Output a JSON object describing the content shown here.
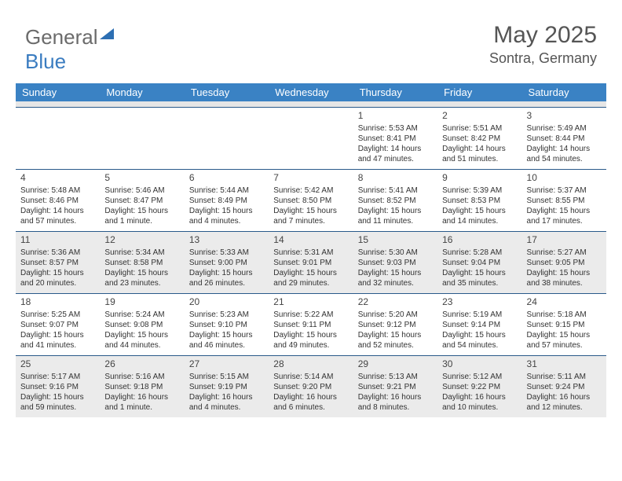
{
  "logo": {
    "text1": "General",
    "text2": "Blue"
  },
  "header": {
    "title": "May 2025",
    "location": "Sontra, Germany"
  },
  "colors": {
    "header_bg": "#3a82c4",
    "header_text": "#ffffff",
    "shade_bg": "#ebebeb",
    "rule": "#2a5a8a",
    "logo_gray": "#6b6b6b",
    "logo_blue": "#3a7cc0"
  },
  "dayheads": [
    "Sunday",
    "Monday",
    "Tuesday",
    "Wednesday",
    "Thursday",
    "Friday",
    "Saturday"
  ],
  "weeks": [
    [
      {
        "empty": true
      },
      {
        "empty": true
      },
      {
        "empty": true
      },
      {
        "empty": true
      },
      {
        "num": "1",
        "sunrise": "Sunrise: 5:53 AM",
        "sunset": "Sunset: 8:41 PM",
        "daylight": "Daylight: 14 hours and 47 minutes."
      },
      {
        "num": "2",
        "sunrise": "Sunrise: 5:51 AM",
        "sunset": "Sunset: 8:42 PM",
        "daylight": "Daylight: 14 hours and 51 minutes."
      },
      {
        "num": "3",
        "sunrise": "Sunrise: 5:49 AM",
        "sunset": "Sunset: 8:44 PM",
        "daylight": "Daylight: 14 hours and 54 minutes."
      }
    ],
    [
      {
        "num": "4",
        "sunrise": "Sunrise: 5:48 AM",
        "sunset": "Sunset: 8:46 PM",
        "daylight": "Daylight: 14 hours and 57 minutes."
      },
      {
        "num": "5",
        "sunrise": "Sunrise: 5:46 AM",
        "sunset": "Sunset: 8:47 PM",
        "daylight": "Daylight: 15 hours and 1 minute."
      },
      {
        "num": "6",
        "sunrise": "Sunrise: 5:44 AM",
        "sunset": "Sunset: 8:49 PM",
        "daylight": "Daylight: 15 hours and 4 minutes."
      },
      {
        "num": "7",
        "sunrise": "Sunrise: 5:42 AM",
        "sunset": "Sunset: 8:50 PM",
        "daylight": "Daylight: 15 hours and 7 minutes."
      },
      {
        "num": "8",
        "sunrise": "Sunrise: 5:41 AM",
        "sunset": "Sunset: 8:52 PM",
        "daylight": "Daylight: 15 hours and 11 minutes."
      },
      {
        "num": "9",
        "sunrise": "Sunrise: 5:39 AM",
        "sunset": "Sunset: 8:53 PM",
        "daylight": "Daylight: 15 hours and 14 minutes."
      },
      {
        "num": "10",
        "sunrise": "Sunrise: 5:37 AM",
        "sunset": "Sunset: 8:55 PM",
        "daylight": "Daylight: 15 hours and 17 minutes."
      }
    ],
    [
      {
        "num": "11",
        "sunrise": "Sunrise: 5:36 AM",
        "sunset": "Sunset: 8:57 PM",
        "daylight": "Daylight: 15 hours and 20 minutes.",
        "shade": true
      },
      {
        "num": "12",
        "sunrise": "Sunrise: 5:34 AM",
        "sunset": "Sunset: 8:58 PM",
        "daylight": "Daylight: 15 hours and 23 minutes.",
        "shade": true
      },
      {
        "num": "13",
        "sunrise": "Sunrise: 5:33 AM",
        "sunset": "Sunset: 9:00 PM",
        "daylight": "Daylight: 15 hours and 26 minutes.",
        "shade": true
      },
      {
        "num": "14",
        "sunrise": "Sunrise: 5:31 AM",
        "sunset": "Sunset: 9:01 PM",
        "daylight": "Daylight: 15 hours and 29 minutes.",
        "shade": true
      },
      {
        "num": "15",
        "sunrise": "Sunrise: 5:30 AM",
        "sunset": "Sunset: 9:03 PM",
        "daylight": "Daylight: 15 hours and 32 minutes.",
        "shade": true
      },
      {
        "num": "16",
        "sunrise": "Sunrise: 5:28 AM",
        "sunset": "Sunset: 9:04 PM",
        "daylight": "Daylight: 15 hours and 35 minutes.",
        "shade": true
      },
      {
        "num": "17",
        "sunrise": "Sunrise: 5:27 AM",
        "sunset": "Sunset: 9:05 PM",
        "daylight": "Daylight: 15 hours and 38 minutes.",
        "shade": true
      }
    ],
    [
      {
        "num": "18",
        "sunrise": "Sunrise: 5:25 AM",
        "sunset": "Sunset: 9:07 PM",
        "daylight": "Daylight: 15 hours and 41 minutes."
      },
      {
        "num": "19",
        "sunrise": "Sunrise: 5:24 AM",
        "sunset": "Sunset: 9:08 PM",
        "daylight": "Daylight: 15 hours and 44 minutes."
      },
      {
        "num": "20",
        "sunrise": "Sunrise: 5:23 AM",
        "sunset": "Sunset: 9:10 PM",
        "daylight": "Daylight: 15 hours and 46 minutes."
      },
      {
        "num": "21",
        "sunrise": "Sunrise: 5:22 AM",
        "sunset": "Sunset: 9:11 PM",
        "daylight": "Daylight: 15 hours and 49 minutes."
      },
      {
        "num": "22",
        "sunrise": "Sunrise: 5:20 AM",
        "sunset": "Sunset: 9:12 PM",
        "daylight": "Daylight: 15 hours and 52 minutes."
      },
      {
        "num": "23",
        "sunrise": "Sunrise: 5:19 AM",
        "sunset": "Sunset: 9:14 PM",
        "daylight": "Daylight: 15 hours and 54 minutes."
      },
      {
        "num": "24",
        "sunrise": "Sunrise: 5:18 AM",
        "sunset": "Sunset: 9:15 PM",
        "daylight": "Daylight: 15 hours and 57 minutes."
      }
    ],
    [
      {
        "num": "25",
        "sunrise": "Sunrise: 5:17 AM",
        "sunset": "Sunset: 9:16 PM",
        "daylight": "Daylight: 15 hours and 59 minutes.",
        "shade": true
      },
      {
        "num": "26",
        "sunrise": "Sunrise: 5:16 AM",
        "sunset": "Sunset: 9:18 PM",
        "daylight": "Daylight: 16 hours and 1 minute.",
        "shade": true
      },
      {
        "num": "27",
        "sunrise": "Sunrise: 5:15 AM",
        "sunset": "Sunset: 9:19 PM",
        "daylight": "Daylight: 16 hours and 4 minutes.",
        "shade": true
      },
      {
        "num": "28",
        "sunrise": "Sunrise: 5:14 AM",
        "sunset": "Sunset: 9:20 PM",
        "daylight": "Daylight: 16 hours and 6 minutes.",
        "shade": true
      },
      {
        "num": "29",
        "sunrise": "Sunrise: 5:13 AM",
        "sunset": "Sunset: 9:21 PM",
        "daylight": "Daylight: 16 hours and 8 minutes.",
        "shade": true
      },
      {
        "num": "30",
        "sunrise": "Sunrise: 5:12 AM",
        "sunset": "Sunset: 9:22 PM",
        "daylight": "Daylight: 16 hours and 10 minutes.",
        "shade": true
      },
      {
        "num": "31",
        "sunrise": "Sunrise: 5:11 AM",
        "sunset": "Sunset: 9:24 PM",
        "daylight": "Daylight: 16 hours and 12 minutes.",
        "shade": true
      }
    ]
  ]
}
